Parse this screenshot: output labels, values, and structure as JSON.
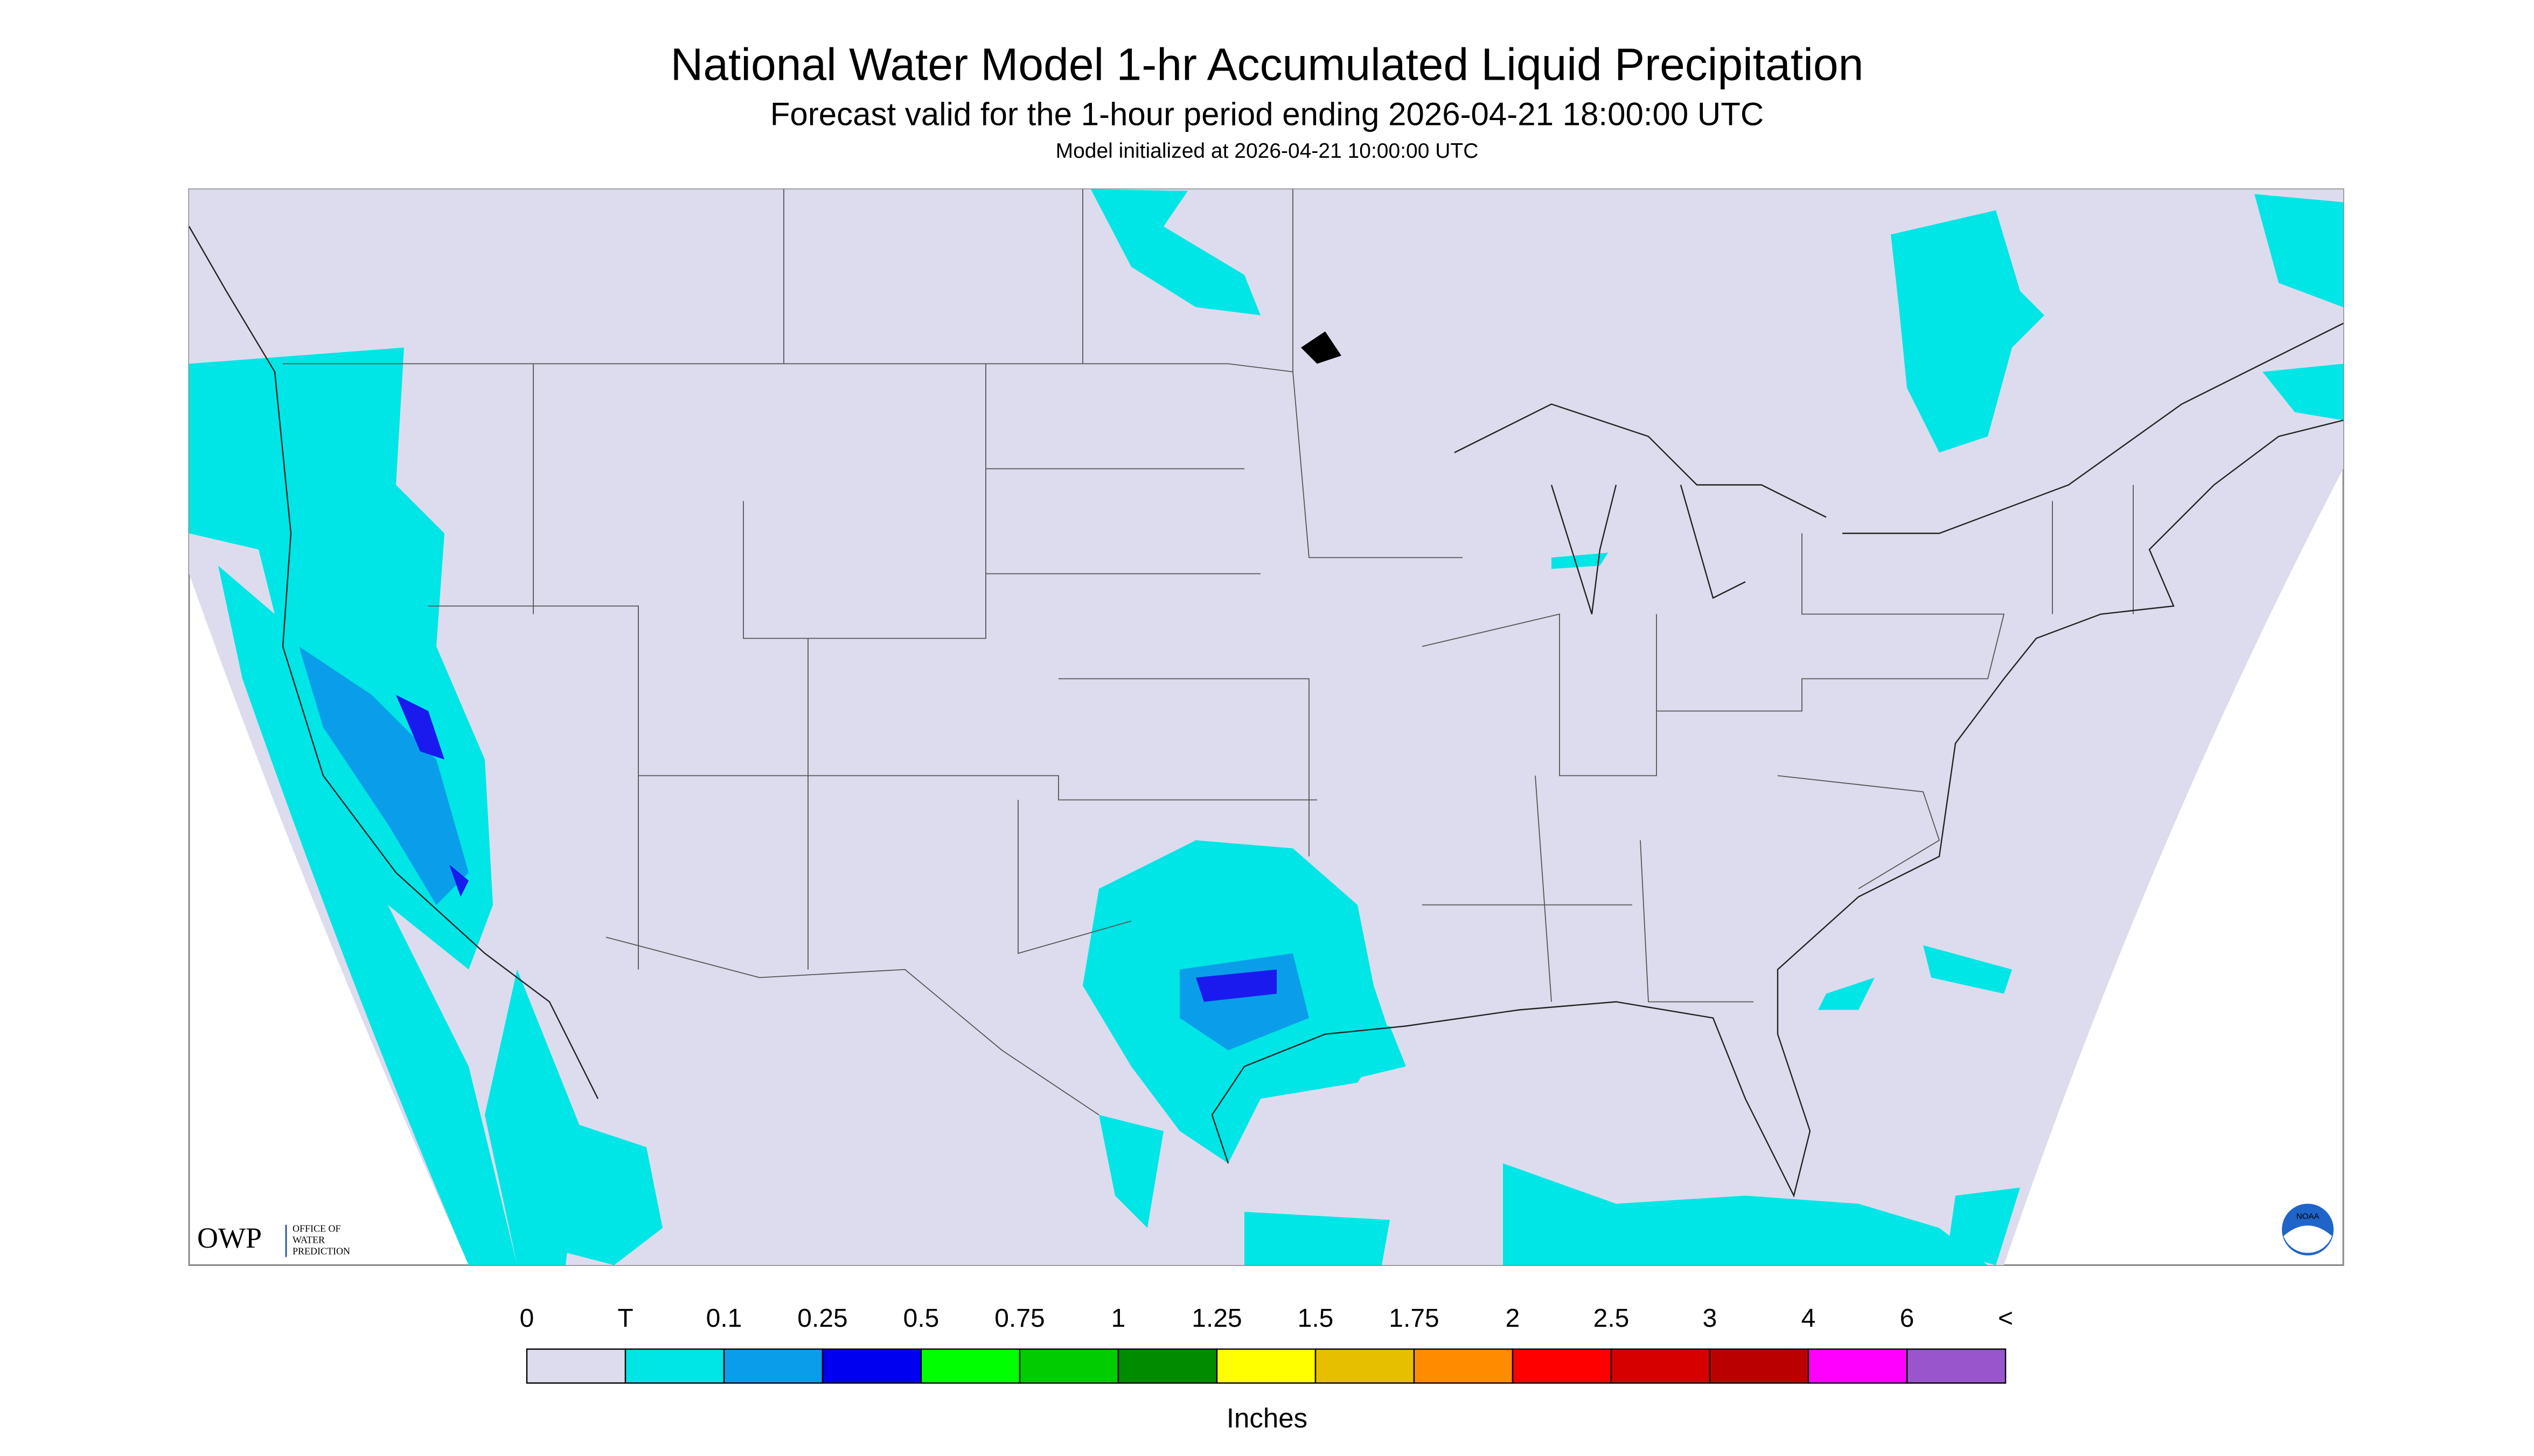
{
  "header": {
    "title": "National Water Model 1-hr Accumulated Liquid Precipitation",
    "subtitle": "Forecast valid for the 1-hour period ending 2026-04-21 18:00:00 UTC",
    "note": "Model initialized at 2026-04-21 10:00:00 UTC"
  },
  "logos": {
    "owp": "OWP",
    "owp_text": [
      "OFFICE OF",
      "WATER",
      "PREDICTION"
    ],
    "noaa": "NOAA"
  },
  "legend": {
    "labels": [
      "0",
      "T",
      "0.1",
      "0.25",
      "0.5",
      "0.75",
      "1",
      "1.25",
      "1.5",
      "1.75",
      "2",
      "2.5",
      "3",
      "4",
      "6",
      "<"
    ],
    "colors": [
      "#dcdcee",
      "#00e5e5",
      "#0a9eea",
      "#0000f0",
      "#00ff00",
      "#00cc00",
      "#008c00",
      "#ffff00",
      "#e6bf00",
      "#ff8c00",
      "#ff0000",
      "#d60000",
      "#bb0000",
      "#ff00ff",
      "#9955cc"
    ],
    "units": "Inches"
  }
}
